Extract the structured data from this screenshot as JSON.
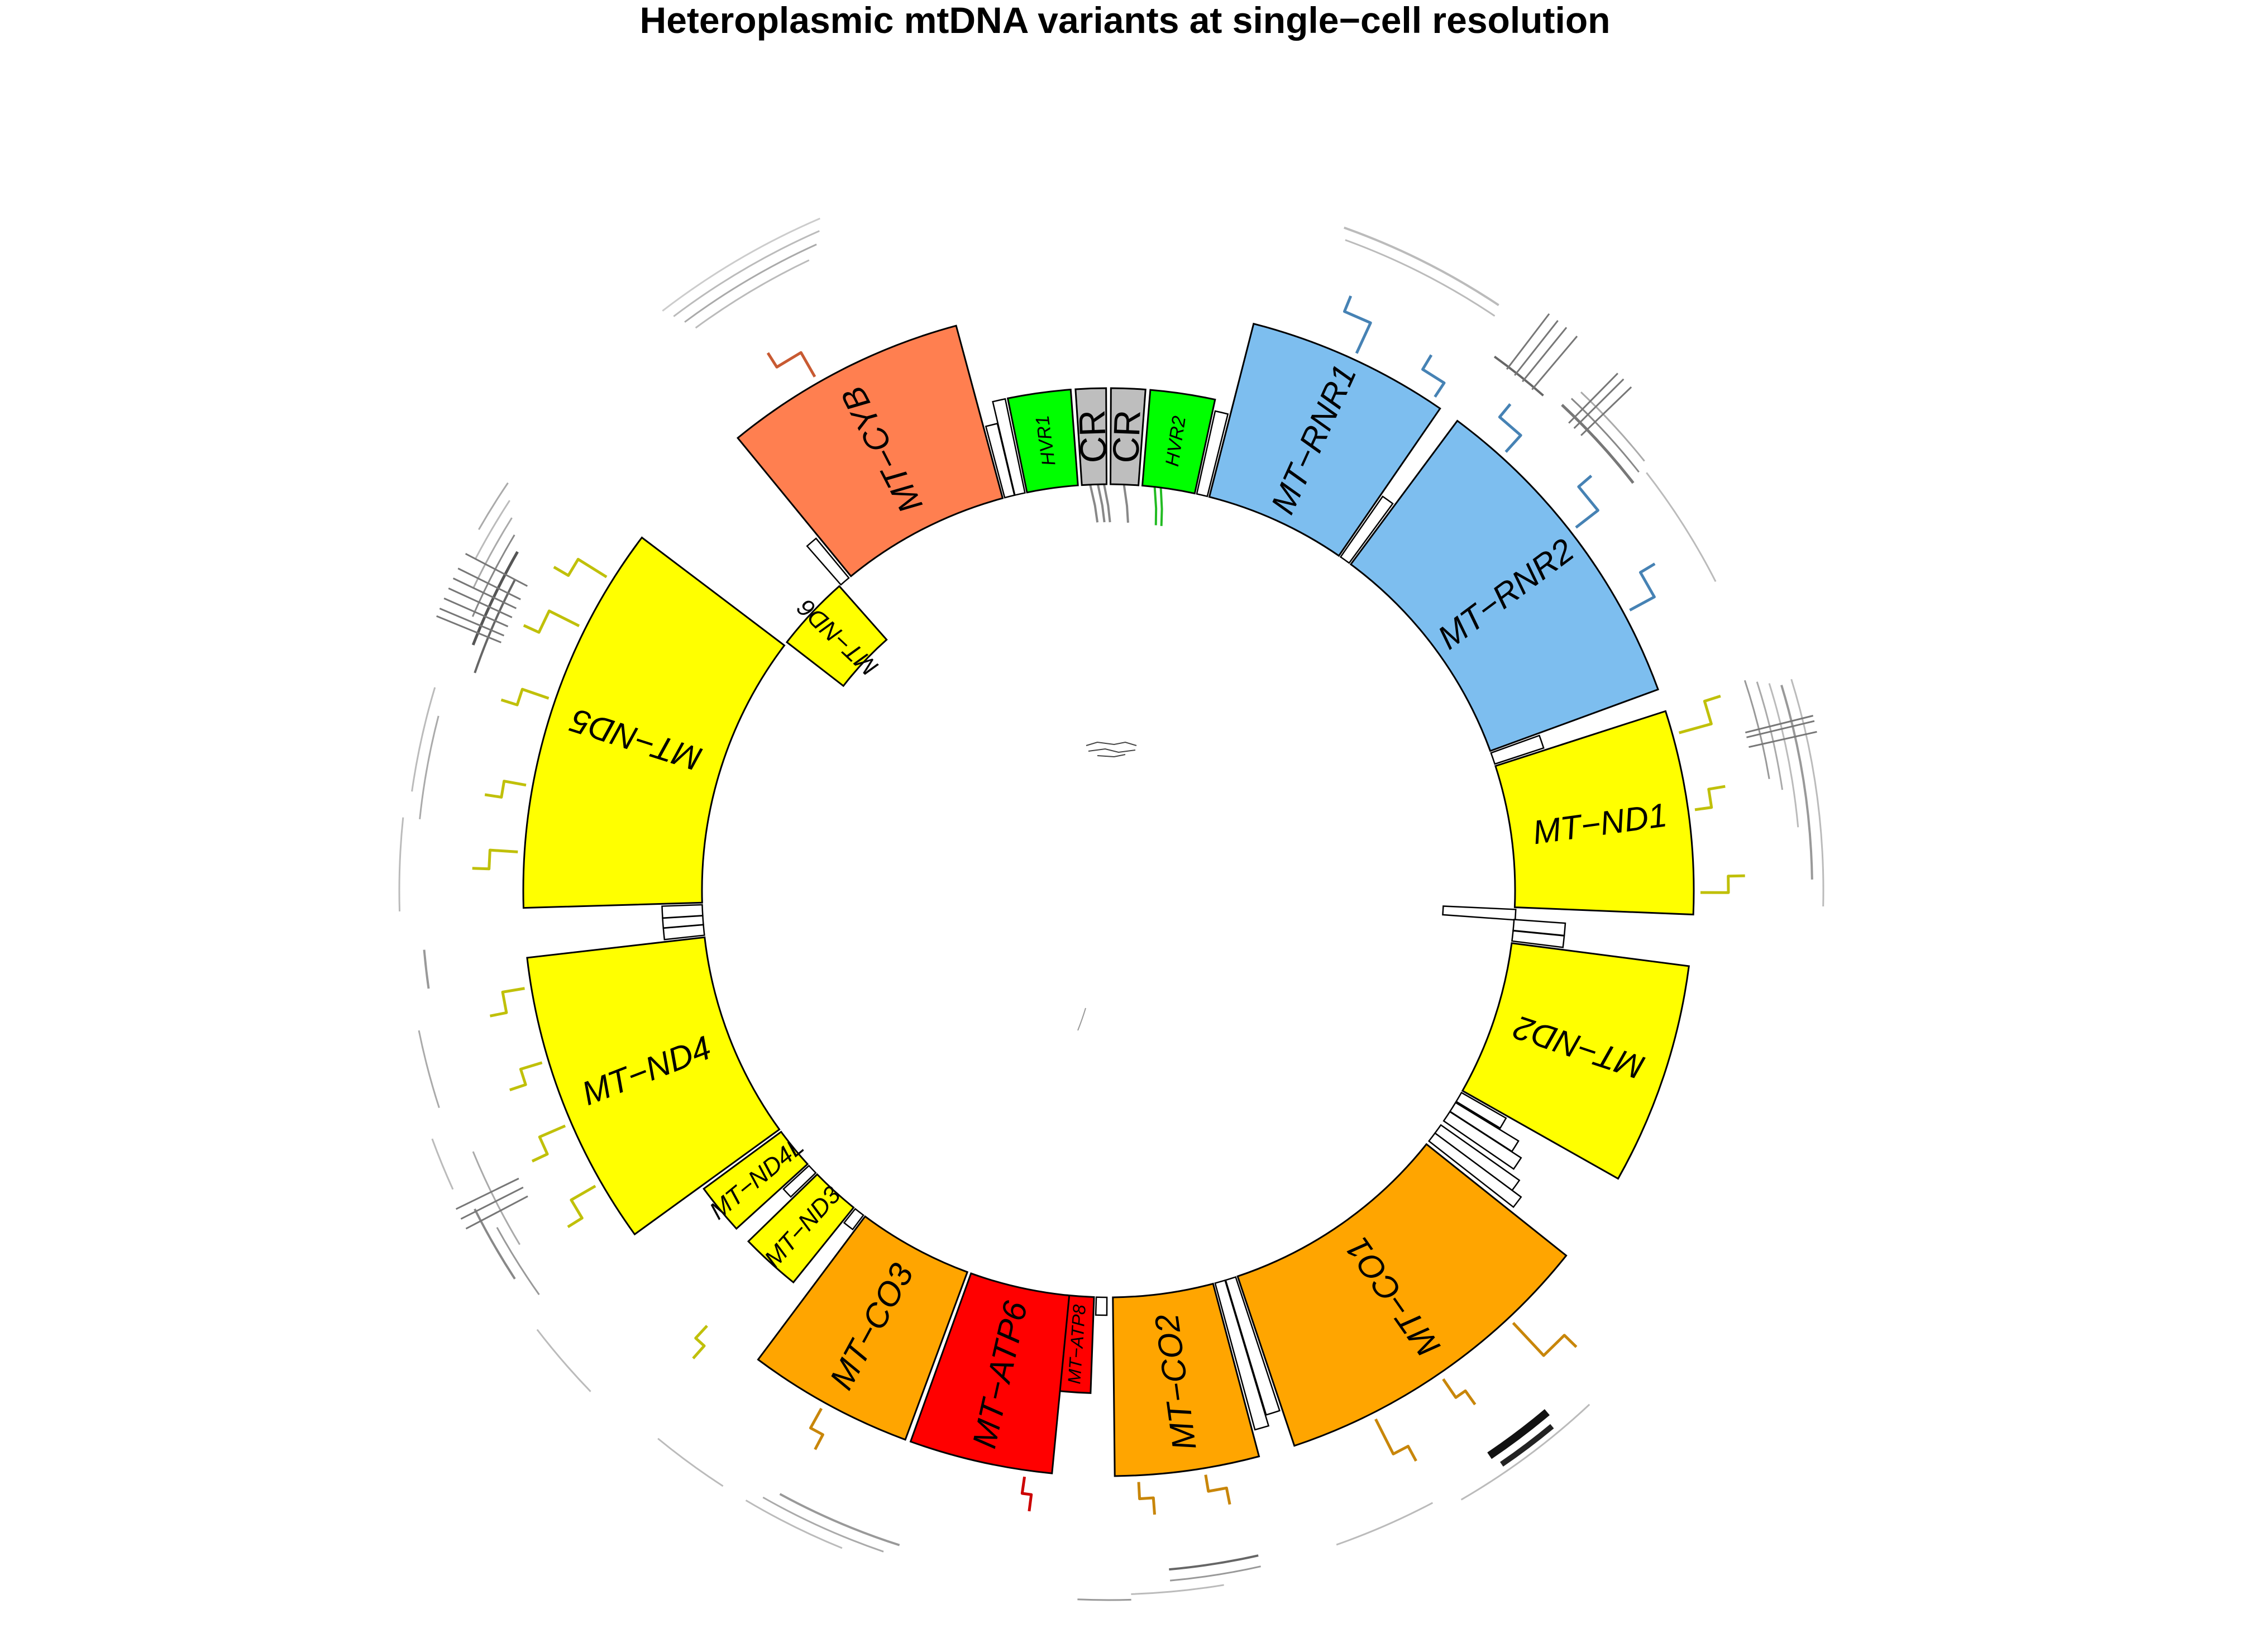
{
  "title": "Heteroplasmic mtDNA variants at single−cell resolution",
  "colors": {
    "rRNA": "#7DBEEF",
    "complex_I": "#FFFF00",
    "complex_IV": "#FFA500",
    "complex_V": "#FF0000",
    "complex_III": "#FF7F50",
    "control_region": "#BEBEBE",
    "hvr": "#00FF00",
    "rRNA_link": "#4682B4",
    "complex_I_link": "#C0C00A",
    "complex_IV_link": "#C8860A",
    "complex_V_link": "#CC0000",
    "complex_III_link": "#C85A32",
    "hvr_link": "#22BB22",
    "cr_link": "#888888"
  },
  "segments": [
    {
      "id": "hvr1",
      "label": "HVR1",
      "start": 16024,
      "end": 16383,
      "color_key": "hvr",
      "kind": "hvr"
    },
    {
      "id": "cr-right",
      "label": "CR",
      "start": 16383,
      "end": 16569,
      "color_key": "control_region",
      "kind": "cr"
    },
    {
      "id": "cr-left",
      "label": "CR",
      "start": 0,
      "end": 207,
      "color_key": "control_region",
      "kind": "cr"
    },
    {
      "id": "hvr2",
      "label": "HVR2",
      "start": 207,
      "end": 576,
      "color_key": "hvr",
      "kind": "hvr"
    },
    {
      "id": "mt-rnr1",
      "label": "MT−RNR1",
      "start": 648,
      "end": 1601,
      "color_key": "rRNA",
      "kind": "gene"
    },
    {
      "id": "mt-rnr2",
      "label": "MT−RNR2",
      "start": 1671,
      "end": 3229,
      "color_key": "rRNA",
      "kind": "gene"
    },
    {
      "id": "mt-nd1",
      "label": "MT−ND1",
      "start": 3307,
      "end": 4262,
      "color_key": "complex_I",
      "kind": "gene"
    },
    {
      "id": "mt-nd2",
      "label": "MT−ND2",
      "start": 4470,
      "end": 5511,
      "color_key": "complex_I",
      "kind": "gene"
    },
    {
      "id": "mt-co1",
      "label": "MT−CO1",
      "start": 5904,
      "end": 7445,
      "color_key": "complex_IV",
      "kind": "gene"
    },
    {
      "id": "mt-co2",
      "label": "MT−CO2",
      "start": 7586,
      "end": 8269,
      "color_key": "complex_IV",
      "kind": "gene"
    },
    {
      "id": "mt-atp8",
      "label": "MT−ATP8",
      "start": 8366,
      "end": 8572,
      "color_key": "complex_V",
      "kind": "gene-small"
    },
    {
      "id": "mt-atp6",
      "label": "MT−ATP6",
      "start": 8527,
      "end": 9207,
      "color_key": "complex_V",
      "kind": "gene"
    },
    {
      "id": "mt-co3",
      "label": "MT−CO3",
      "start": 9207,
      "end": 9990,
      "color_key": "complex_IV",
      "kind": "gene"
    },
    {
      "id": "mt-nd3",
      "label": "MT−ND3",
      "start": 10059,
      "end": 10404,
      "color_key": "complex_I",
      "kind": "gene-small"
    },
    {
      "id": "mt-nd4l",
      "label": "MT−ND4L",
      "start": 10470,
      "end": 10766,
      "color_key": "complex_I",
      "kind": "gene-small"
    },
    {
      "id": "mt-nd4",
      "label": "MT−ND4",
      "start": 10760,
      "end": 12137,
      "color_key": "complex_I",
      "kind": "gene"
    },
    {
      "id": "mt-nd5",
      "label": "MT−ND5",
      "start": 12337,
      "end": 14148,
      "color_key": "complex_I",
      "kind": "gene"
    },
    {
      "id": "mt-nd6",
      "label": "MT−ND6",
      "start": 14149,
      "end": 14673,
      "color_key": "complex_I",
      "kind": "gene-inner"
    },
    {
      "id": "mt-cyb",
      "label": "MT−CYB",
      "start": 14747,
      "end": 15887,
      "color_key": "complex_III",
      "kind": "gene"
    }
  ]
}
